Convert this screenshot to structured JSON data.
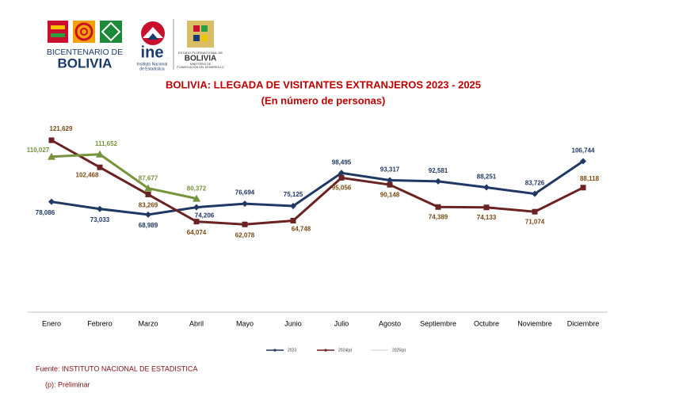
{
  "header": {
    "bicentenario_line1": "BICENTENARIO DE",
    "bicentenario_line2": "BOLIVIA",
    "ine_logo": "ine",
    "ine_line1": "Instituto Nacional",
    "ine_line2": "de Estadística",
    "estado_line1": "ESTADO PLURINACIONAL DE",
    "estado_line2": "BOLIVIA",
    "estado_line3": "MINISTERIO DE",
    "estado_line4": "PLANIFICACIÓN DEL DESARROLLO"
  },
  "chart_data": {
    "type": "line",
    "title": "BOLIVIA: LLEGADA DE VISITANTES EXTRANJEROS 2023 - 2025",
    "subtitle": "(En número de personas)",
    "categories": [
      "Enero",
      "Febrero",
      "Marzo",
      "Abril",
      "Mayo",
      "Junio",
      "Julio",
      "Agosto",
      "Septiembre",
      "Octubre",
      "Noviembre",
      "Diciembre"
    ],
    "series": [
      {
        "name": "2023",
        "color": "#1f3864",
        "marker": "diamond",
        "values": [
          78086,
          73033,
          68989,
          74206,
          76694,
          75125,
          98495,
          93317,
          92581,
          88251,
          83726,
          106744
        ],
        "value_labels": [
          "78,086",
          "73,033",
          "68,989",
          "74,206",
          "76,694",
          "75,125",
          "98,495",
          "93,317",
          "92,581",
          "88,251",
          "83,726",
          "106,744"
        ]
      },
      {
        "name": "2024(p)",
        "color": "#6b2222",
        "marker": "square",
        "values": [
          121629,
          102468,
          83269,
          64074,
          62078,
          64748,
          95056,
          90148,
          74389,
          74133,
          71074,
          88118
        ],
        "value_labels": [
          "121,629",
          "102,468",
          "83,269",
          "64,074",
          "62,078",
          "64,748",
          "95,056",
          "90,148",
          "74,389",
          "74,133",
          "71,074",
          "88,118"
        ]
      },
      {
        "name": "2025(p)",
        "color": "#77933c",
        "marker": "triangle",
        "values": [
          110027,
          111652,
          87677,
          80372,
          null,
          null,
          null,
          null,
          null,
          null,
          null,
          null
        ],
        "value_labels": [
          "110,027",
          "111,652",
          "87,677",
          "80,372",
          null,
          null,
          null,
          null,
          null,
          null,
          null,
          null
        ]
      }
    ],
    "legend": "bottom"
  },
  "footer": {
    "source": "Fuente: INSTITUTO NACIONAL DE ESTADISTICA",
    "note": "(p): Preliminar"
  }
}
